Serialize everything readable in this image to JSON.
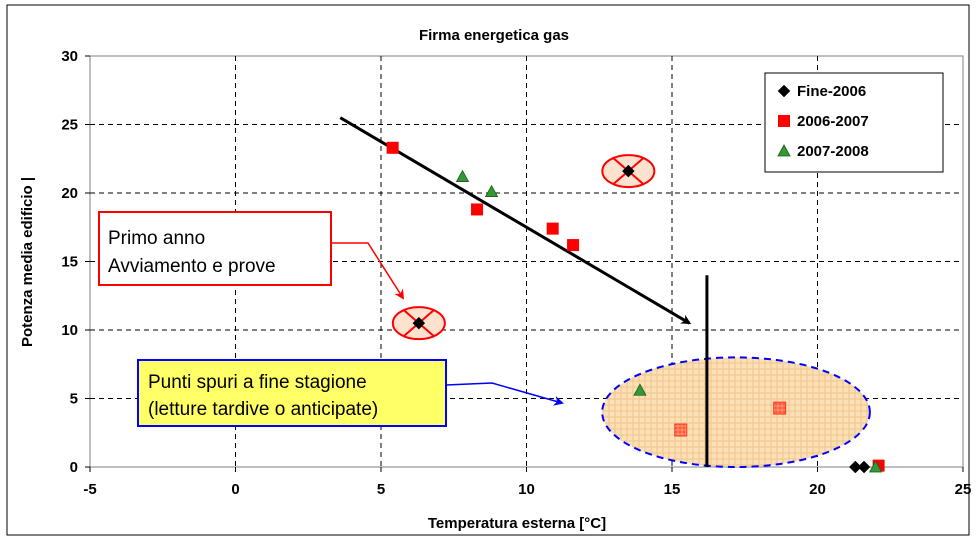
{
  "chart_data": {
    "type": "scatter",
    "title": "Firma energetica gas",
    "xlabel": "Temperatura esterna [°C]",
    "ylabel": "Potenza media edificio |",
    "xlim": [
      -5,
      25
    ],
    "ylim": [
      0,
      30
    ],
    "x_ticks": [
      "-5",
      "0",
      "5",
      "10",
      "15",
      "20",
      "25"
    ],
    "y_ticks": [
      "0",
      "5",
      "10",
      "15",
      "20",
      "25",
      "30"
    ],
    "grid": true,
    "legend_position": "top-right",
    "series": [
      {
        "name": "Fine-2006",
        "marker": "diamond",
        "color": "#000000",
        "points": [
          [
            6.3,
            10.5
          ],
          [
            13.5,
            21.6
          ],
          [
            21.3,
            0.0
          ],
          [
            21.6,
            0.0
          ]
        ]
      },
      {
        "name": "2006-2007",
        "marker": "square",
        "color": "#ff0000",
        "points": [
          [
            5.4,
            23.3
          ],
          [
            8.3,
            18.8
          ],
          [
            10.9,
            17.4
          ],
          [
            11.6,
            16.2
          ],
          [
            15.3,
            2.7
          ],
          [
            18.7,
            4.3
          ],
          [
            22.1,
            0.1
          ]
        ]
      },
      {
        "name": "2007-2008",
        "marker": "triangle",
        "color": "#339933",
        "points": [
          [
            7.8,
            21.2
          ],
          [
            8.8,
            20.1
          ],
          [
            13.9,
            5.6
          ],
          [
            22.0,
            0.0
          ]
        ]
      }
    ],
    "annotations": [
      {
        "text": [
          "Primo anno",
          "Avviamento e prove"
        ],
        "box_fill": "#ffffff",
        "border": "#ff0000"
      },
      {
        "text": [
          "Punti spuri a fine stagione",
          "(letture tardive o anticipate)"
        ],
        "box_fill": "#ffff66",
        "border": "#0000ff"
      }
    ],
    "trend_arrow": {
      "from": [
        3.6,
        25.5
      ],
      "to": [
        15.6,
        10.5
      ],
      "color": "#000000"
    },
    "vertical_line": {
      "x": 16.2,
      "y_from": 0,
      "y_to": 14.0,
      "color": "#000000"
    },
    "excluded_points": [
      [
        6.3,
        10.5
      ],
      [
        13.5,
        21.6
      ]
    ],
    "spurious_region": {
      "cx": 17.2,
      "cy": 4.0,
      "rx": 4.6,
      "ry": 4.0
    }
  }
}
